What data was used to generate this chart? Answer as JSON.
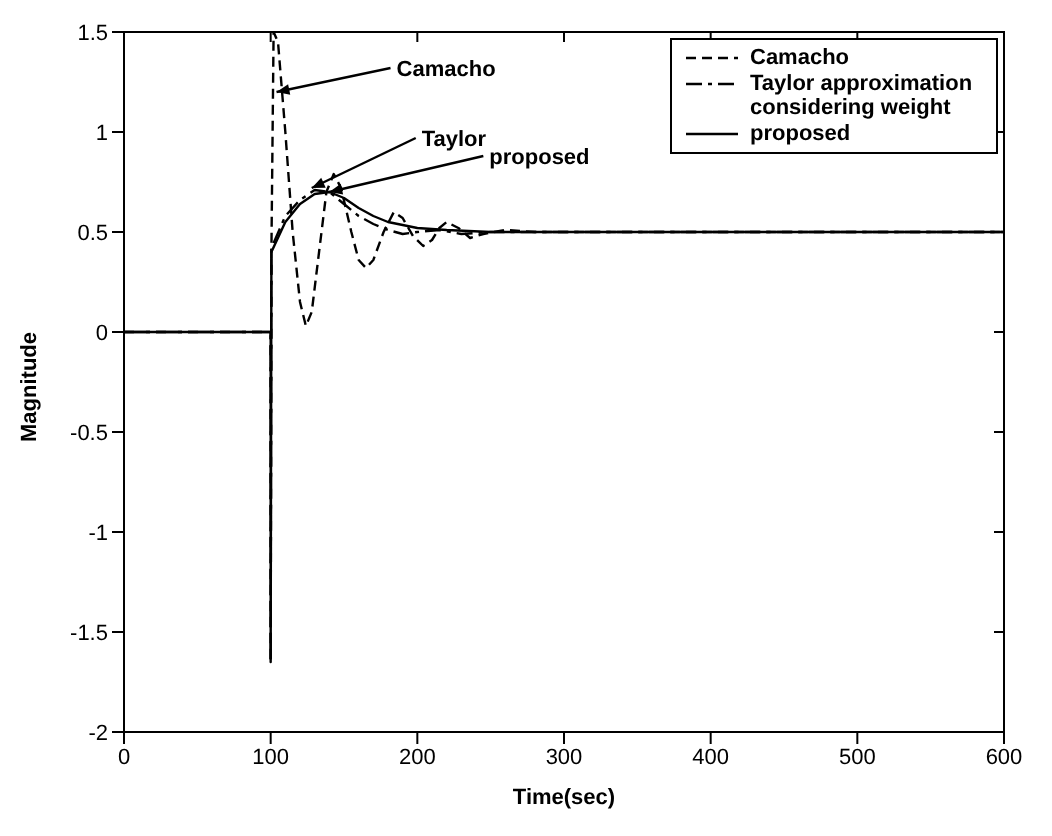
{
  "chart_data": {
    "type": "line",
    "xlabel": "Time(sec)",
    "ylabel": "Magnitude",
    "xlim": [
      0,
      600
    ],
    "xticks": [
      0,
      100,
      200,
      300,
      400,
      500,
      600
    ],
    "ylim": [
      -2,
      1.5
    ],
    "yticks": [
      -2,
      -1.5,
      -1,
      -0.5,
      0,
      0.5,
      1,
      1.5
    ],
    "legend": "top right",
    "marker": "none",
    "series": [
      {
        "name": "Camacho",
        "color": "#000000",
        "line_style": "dashed",
        "x": [
          0,
          100,
          100,
          100.5,
          102,
          105,
          110,
          115,
          120,
          124,
          128,
          133,
          138,
          143,
          148,
          155,
          160,
          165,
          170,
          177,
          184,
          190,
          197,
          204,
          210,
          215,
          220,
          228,
          236,
          245,
          260,
          280,
          600
        ],
        "values": [
          0,
          0,
          -1.65,
          0.4,
          1.5,
          1.45,
          1.0,
          0.5,
          0.15,
          0.03,
          0.1,
          0.4,
          0.7,
          0.79,
          0.72,
          0.5,
          0.36,
          0.32,
          0.36,
          0.5,
          0.6,
          0.57,
          0.48,
          0.43,
          0.46,
          0.52,
          0.55,
          0.52,
          0.47,
          0.49,
          0.51,
          0.5,
          0.5
        ]
      },
      {
        "name": "Taylor approximation considering weight",
        "color": "#000000",
        "line_style": "dashdot",
        "x": [
          0,
          100,
          100,
          100.5,
          110,
          120,
          130,
          140,
          150,
          160,
          170,
          180,
          190,
          200,
          215,
          230,
          250,
          600
        ],
        "values": [
          0,
          0,
          -1.65,
          0.42,
          0.58,
          0.66,
          0.71,
          0.7,
          0.64,
          0.58,
          0.54,
          0.51,
          0.49,
          0.5,
          0.51,
          0.49,
          0.5,
          0.5
        ]
      },
      {
        "name": "proposed",
        "color": "#000000",
        "line_style": "solid",
        "x": [
          0,
          100,
          100,
          100.5,
          110,
          120,
          130,
          140,
          150,
          160,
          170,
          180,
          200,
          220,
          250,
          300,
          600
        ],
        "values": [
          0,
          0,
          -1.65,
          0.4,
          0.55,
          0.64,
          0.69,
          0.7,
          0.67,
          0.62,
          0.58,
          0.55,
          0.52,
          0.51,
          0.5,
          0.5,
          0.5
        ]
      }
    ],
    "annotations": [
      {
        "text": "Camacho",
        "x": 104,
        "y": 1.2
      },
      {
        "text": "Taylor",
        "x": 128,
        "y": 0.72
      },
      {
        "text": "proposed",
        "x": 140,
        "y": 0.7
      }
    ]
  }
}
